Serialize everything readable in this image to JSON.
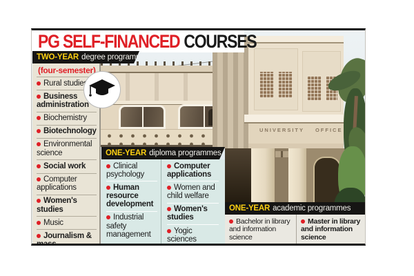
{
  "title": {
    "highlight": "PG SELF-FINANCED",
    "rest": "COURSES"
  },
  "colors": {
    "accent_red": "#df1f26",
    "accent_yellow": "#fccf12",
    "header_bar_bg": "#161514",
    "two_year_panel_bg": "#e9e4d6",
    "diploma_panel_bg": "#d9e9e6",
    "academic_panel_bg": "#eae8e1"
  },
  "sections": {
    "two_year": {
      "label": "TWO-YEAR",
      "label_rest": "degree programmes",
      "subtitle": "(four-semester)",
      "items": [
        {
          "text": "Rural studies",
          "bold": false
        },
        {
          "text": "Business administration",
          "bold": true
        },
        {
          "text": "Biochemistry",
          "bold": false
        },
        {
          "text": "Biotechnology",
          "bold": true
        },
        {
          "text": "Environmental science",
          "bold": false
        },
        {
          "text": "Social work",
          "bold": true
        },
        {
          "text": "Computer applications",
          "bold": false
        },
        {
          "text": "Women's studies",
          "bold": true
        },
        {
          "text": "Music",
          "bold": false
        },
        {
          "text": "Journalism & mass communications",
          "bold": true
        }
      ]
    },
    "one_year_diploma": {
      "label": "ONE-YEAR",
      "label_rest": "diploma programmes",
      "col1": [
        {
          "text": "Clinical psychology",
          "bold": false
        },
        {
          "text": "Human resource development",
          "bold": true
        },
        {
          "text": "Industrial safety management",
          "bold": false
        }
      ],
      "col2": [
        {
          "text": "Computer applications",
          "bold": true
        },
        {
          "text": "Women and child welfare",
          "bold": false
        },
        {
          "text": "Women's studies",
          "bold": true
        },
        {
          "text": "Yogic sciences",
          "bold": false
        }
      ]
    },
    "one_year_academic": {
      "label": "ONE-YEAR",
      "label_rest": "academic programmes",
      "col1": [
        {
          "text": "Bachelor in library and information science",
          "bold": false
        }
      ],
      "col2": [
        {
          "text": "Master in library and information science",
          "bold": true
        }
      ]
    }
  },
  "photo": {
    "building_sign": "UNIVERSITY OFFICE"
  },
  "icons": {
    "badge": "graduation-cap"
  }
}
